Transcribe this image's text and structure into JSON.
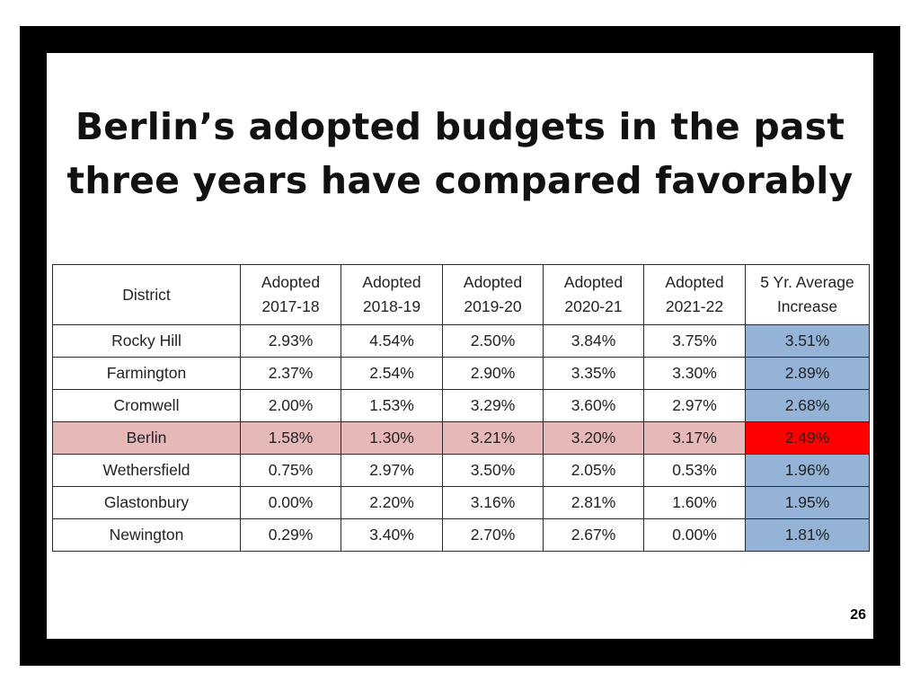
{
  "slide": {
    "title_line1": "Berlin’s adopted budgets in the past",
    "title_line2": "three years have compared favorably",
    "page_number": "26"
  },
  "colors": {
    "frame": "#000000",
    "highlight_row": "#e6b8b8",
    "average_cell": "#95b3d7",
    "highlight_average_cell": "#ff0000"
  },
  "table": {
    "headers": [
      {
        "line1": "District",
        "line2": ""
      },
      {
        "line1": "Adopted",
        "line2": "2017-18"
      },
      {
        "line1": "Adopted",
        "line2": "2018-19"
      },
      {
        "line1": "Adopted",
        "line2": "2019-20"
      },
      {
        "line1": "Adopted",
        "line2": "2020-21"
      },
      {
        "line1": "Adopted",
        "line2": "2021-22"
      },
      {
        "line1": "5 Yr. Average",
        "line2": "Increase"
      }
    ],
    "rows": [
      {
        "district": "Rocky Hill",
        "y1718": "2.93%",
        "y1819": "4.54%",
        "y1920": "2.50%",
        "y2021": "3.84%",
        "y2122": "3.75%",
        "avg": "3.51%"
      },
      {
        "district": "Farmington",
        "y1718": "2.37%",
        "y1819": "2.54%",
        "y1920": "2.90%",
        "y2021": "3.35%",
        "y2122": "3.30%",
        "avg": "2.89%"
      },
      {
        "district": "Cromwell",
        "y1718": "2.00%",
        "y1819": "1.53%",
        "y1920": "3.29%",
        "y2021": "3.60%",
        "y2122": "2.97%",
        "avg": "2.68%"
      },
      {
        "district": "Berlin",
        "y1718": "1.58%",
        "y1819": "1.30%",
        "y1920": "3.21%",
        "y2021": "3.20%",
        "y2122": "3.17%",
        "avg": "2.49%"
      },
      {
        "district": "Wethersfield",
        "y1718": "0.75%",
        "y1819": "2.97%",
        "y1920": "3.50%",
        "y2021": "2.05%",
        "y2122": "0.53%",
        "avg": "1.96%"
      },
      {
        "district": "Glastonbury",
        "y1718": "0.00%",
        "y1819": "2.20%",
        "y1920": "3.16%",
        "y2021": "2.81%",
        "y2122": "1.60%",
        "avg": "1.95%"
      },
      {
        "district": "Newington",
        "y1718": "0.29%",
        "y1819": "3.40%",
        "y1920": "2.70%",
        "y2021": "2.67%",
        "y2122": "0.00%",
        "avg": "1.81%"
      }
    ]
  }
}
